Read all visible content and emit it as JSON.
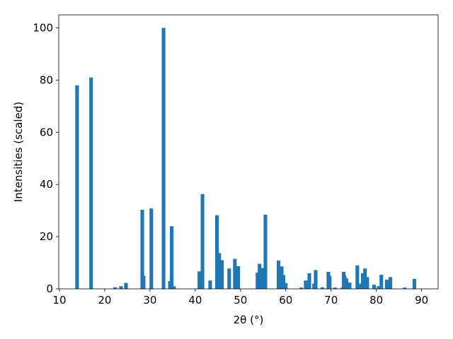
{
  "chart_data": {
    "type": "bar",
    "xlabel": "2θ (°)",
    "ylabel": "Intensities (scaled)",
    "color": "#1f77b4",
    "x": [
      13.9,
      17.0,
      22.3,
      23.6,
      24.7,
      28.3,
      28.6,
      30.3,
      33.0,
      34.4,
      34.8,
      35.3,
      40.9,
      41.6,
      43.3,
      44.8,
      45.3,
      45.9,
      47.5,
      48.75,
      49.5,
      53.75,
      54.2,
      54.8,
      55.5,
      58.4,
      59.1,
      59.5,
      60.0,
      63.4,
      64.4,
      65.2,
      66.25,
      66.6,
      68.1,
      69.4,
      69.7,
      70.9,
      72.5,
      72.8,
      73.0,
      73.4,
      74.1,
      75.8,
      76.6,
      77.0,
      77.5,
      78.0,
      79.5,
      80.5,
      81.1,
      82.3,
      83.1,
      86.25,
      88.4
    ],
    "values": [
      78,
      81,
      0.6,
      1,
      2.3,
      30.3,
      5,
      30.8,
      100,
      3,
      24,
      1,
      6.7,
      36.3,
      3.2,
      28.2,
      13.7,
      11,
      7.8,
      11.5,
      8.7,
      6.2,
      9.6,
      8,
      28.4,
      10.8,
      8.6,
      5.3,
      2.2,
      0.5,
      3.2,
      6,
      2,
      7.2,
      0.6,
      6.5,
      5,
      0.5,
      0.5,
      6.5,
      5,
      4,
      2.4,
      9,
      2,
      6,
      7.8,
      4.5,
      1.6,
      1,
      5.4,
      3.5,
      4.5,
      0.5,
      3.8
    ],
    "xlim": [
      9.85,
      93.65
    ],
    "ylim": [
      0,
      105
    ],
    "xticks": [
      10,
      20,
      30,
      40,
      50,
      60,
      70,
      80,
      90
    ],
    "yticks": [
      0,
      20,
      40,
      60,
      80,
      100
    ]
  }
}
